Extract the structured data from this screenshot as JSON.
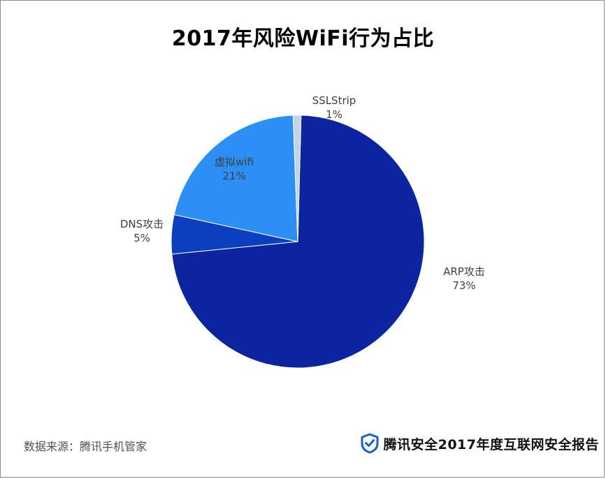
{
  "chart_data": {
    "type": "pie",
    "title": "2017年风险WiFi行为占比",
    "slices": [
      {
        "name": "ARP攻击",
        "pct_label": "73%",
        "value": 73,
        "color": "#0a259f"
      },
      {
        "name": "DNS攻击",
        "pct_label": "5%",
        "value": 5,
        "color": "#0b3fbd"
      },
      {
        "name": "虚拟wifi",
        "pct_label": "21%",
        "value": 21,
        "color": "#2b8ff5"
      },
      {
        "name": "SSLStrip",
        "pct_label": "1%",
        "value": 1,
        "color": "#c5d3e8"
      }
    ],
    "start_angle_deg": 1.5,
    "direction": "clockwise"
  },
  "footer": {
    "source": "数据来源：腾讯手机管家",
    "brand": "腾讯安全2017年度互联网安全报告",
    "brand_icon": "shield-check-icon",
    "brand_color": "#1a5fd0"
  }
}
